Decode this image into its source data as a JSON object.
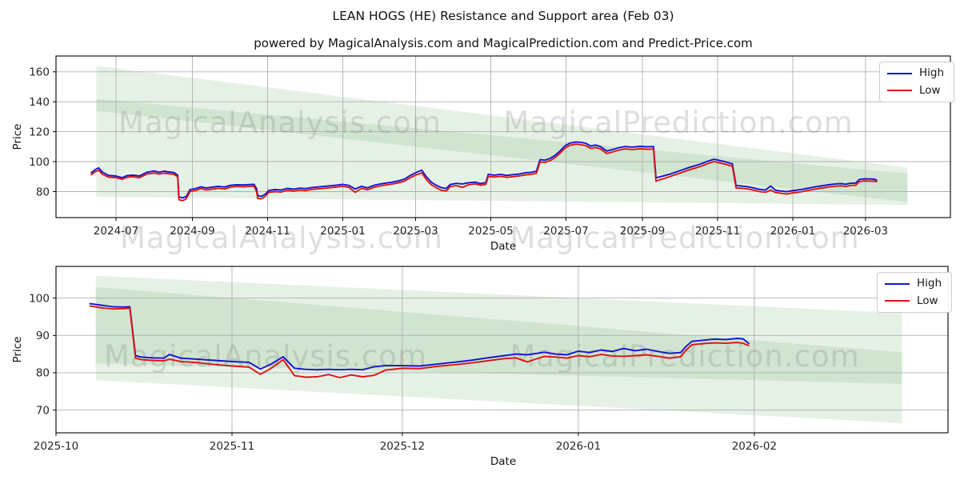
{
  "header": {
    "title": "LEAN HOGS (HE) Resistance and Support area (Feb 03)",
    "subtitle": "powered by MagicalAnalysis.com and MagicalPrediction.com and Predict-Price.com"
  },
  "legend": {
    "high_label": "High",
    "low_label": "Low"
  },
  "watermark_texts": [
    "MagicalAnalysis.com",
    "MagicalPrediction.com"
  ],
  "colors": {
    "high_line": "#1414cc",
    "low_line": "#dc1414",
    "band_green": "#3f8f3f",
    "grid": "#b0b0b0",
    "spine": "#000000",
    "tick_text": "#262626",
    "watermark": "#8a8a8a"
  },
  "chart_data": [
    {
      "type": "line",
      "title": "LEAN HOGS (HE) Resistance and Support area (Feb 03)",
      "subtitle": "powered by MagicalAnalysis.com and MagicalPrediction.com and Predict-Price.com",
      "xlabel": "Date",
      "ylabel": "Price",
      "x_tick_labels": [
        "2024-07",
        "2024-09",
        "2024-11",
        "2025-01",
        "2025-03",
        "2025-05",
        "2025-07",
        "2025-09",
        "2025-11",
        "2026-01",
        "2026-03"
      ],
      "y_ticks": [
        80,
        100,
        120,
        140,
        160
      ],
      "ylim": [
        62.6,
        170.6
      ],
      "grid": true,
      "legend": [
        "High",
        "Low"
      ],
      "legend_position": "upper right",
      "bands": [
        {
          "start": [
            "2024-06-15",
            164,
            76.5
          ],
          "end": [
            "2026-04-04",
            96,
            71
          ]
        },
        {
          "start": [
            "2024-06-15",
            142,
            134
          ],
          "end": [
            "2026-04-04",
            92,
            73
          ]
        }
      ],
      "points": [
        [
          "2024-06-11",
          92.6,
          91.2
        ],
        [
          "2024-06-14",
          94.6,
          93.2
        ],
        [
          "2024-06-17",
          95.8,
          94.2
        ],
        [
          "2024-06-20",
          93.0,
          91.6
        ],
        [
          "2024-06-25",
          90.8,
          89.6
        ],
        [
          "2024-07-01",
          90.4,
          89.3
        ],
        [
          "2024-07-06",
          89.3,
          88.2
        ],
        [
          "2024-07-10",
          90.7,
          89.6
        ],
        [
          "2024-07-15",
          91.0,
          89.9
        ],
        [
          "2024-07-20",
          90.4,
          89.2
        ],
        [
          "2024-07-26",
          92.9,
          91.7
        ],
        [
          "2024-08-01",
          93.7,
          92.4
        ],
        [
          "2024-08-05",
          92.9,
          91.7
        ],
        [
          "2024-08-09",
          93.6,
          92.3
        ],
        [
          "2024-08-13",
          93.1,
          91.9
        ],
        [
          "2024-08-17",
          92.7,
          91.5
        ],
        [
          "2024-08-20",
          91.0,
          89.8
        ],
        [
          "2024-08-21",
          76.4,
          74.6
        ],
        [
          "2024-08-24",
          75.8,
          73.9
        ],
        [
          "2024-08-27",
          76.6,
          75.1
        ],
        [
          "2024-08-30",
          81.3,
          80.1
        ],
        [
          "2024-09-04",
          82.1,
          80.9
        ],
        [
          "2024-09-08",
          83.2,
          82.0
        ],
        [
          "2024-09-12",
          82.4,
          81.1
        ],
        [
          "2024-09-17",
          82.9,
          81.6
        ],
        [
          "2024-09-22",
          83.5,
          82.2
        ],
        [
          "2024-09-27",
          83.0,
          81.7
        ],
        [
          "2024-10-02",
          84.2,
          83.0
        ],
        [
          "2024-10-07",
          84.6,
          83.4
        ],
        [
          "2024-10-12",
          84.4,
          83.2
        ],
        [
          "2024-10-17",
          84.7,
          83.5
        ],
        [
          "2024-10-21",
          84.8,
          83.6
        ],
        [
          "2024-10-23",
          82.0,
          80.0
        ],
        [
          "2024-10-24",
          77.2,
          75.4
        ],
        [
          "2024-10-27",
          76.8,
          75.1
        ],
        [
          "2024-10-30",
          78.2,
          76.8
        ],
        [
          "2024-11-02",
          80.7,
          79.5
        ],
        [
          "2024-11-07",
          81.3,
          80.0
        ],
        [
          "2024-11-12",
          81.0,
          79.7
        ],
        [
          "2024-11-17",
          82.1,
          80.8
        ],
        [
          "2024-11-22",
          81.6,
          80.3
        ],
        [
          "2024-11-27",
          82.3,
          81.0
        ],
        [
          "2024-12-02",
          82.0,
          80.7
        ],
        [
          "2024-12-07",
          82.7,
          81.4
        ],
        [
          "2024-12-12",
          83.1,
          81.8
        ],
        [
          "2024-12-17",
          83.5,
          82.2
        ],
        [
          "2024-12-22",
          83.9,
          82.6
        ],
        [
          "2024-12-27",
          84.3,
          83.0
        ],
        [
          "2025-01-01",
          84.8,
          83.5
        ],
        [
          "2025-01-06",
          84.1,
          82.8
        ],
        [
          "2025-01-11",
          81.7,
          79.5
        ],
        [
          "2025-01-16",
          83.5,
          82.1
        ],
        [
          "2025-01-21",
          82.5,
          81.2
        ],
        [
          "2025-01-26",
          84.1,
          82.8
        ],
        [
          "2025-01-31",
          85.0,
          83.7
        ],
        [
          "2025-02-05",
          85.7,
          84.4
        ],
        [
          "2025-02-10",
          86.3,
          85.0
        ],
        [
          "2025-02-15",
          87.1,
          85.8
        ],
        [
          "2025-02-20",
          88.3,
          87.0
        ],
        [
          "2025-02-25",
          90.9,
          89.4
        ],
        [
          "2025-03-02",
          92.9,
          91.3
        ],
        [
          "2025-03-06",
          94.3,
          92.5
        ],
        [
          "2025-03-10",
          89.6,
          87.8
        ],
        [
          "2025-03-14",
          86.1,
          84.4
        ],
        [
          "2025-03-18",
          84.1,
          82.5
        ],
        [
          "2025-03-22",
          82.6,
          80.8
        ],
        [
          "2025-03-26",
          82.0,
          80.4
        ],
        [
          "2025-03-29",
          84.7,
          83.3
        ],
        [
          "2025-04-03",
          85.5,
          84.0
        ],
        [
          "2025-04-08",
          85.1,
          82.8
        ],
        [
          "2025-04-13",
          85.9,
          84.6
        ],
        [
          "2025-04-18",
          86.3,
          85.1
        ],
        [
          "2025-04-23",
          85.4,
          84.2
        ],
        [
          "2025-04-27",
          86.0,
          84.8
        ],
        [
          "2025-04-29",
          91.5,
          90.1
        ],
        [
          "2025-05-04",
          91.0,
          89.7
        ],
        [
          "2025-05-09",
          91.5,
          90.2
        ],
        [
          "2025-05-14",
          90.8,
          89.5
        ],
        [
          "2025-05-19",
          91.3,
          90.0
        ],
        [
          "2025-05-24",
          91.7,
          90.4
        ],
        [
          "2025-05-29",
          92.5,
          91.1
        ],
        [
          "2025-06-03",
          92.9,
          91.6
        ],
        [
          "2025-06-07",
          93.6,
          92.2
        ],
        [
          "2025-06-10",
          101.3,
          99.7
        ],
        [
          "2025-06-14",
          101.0,
          99.5
        ],
        [
          "2025-06-18",
          102.1,
          100.6
        ],
        [
          "2025-06-22",
          104.1,
          102.6
        ],
        [
          "2025-06-26",
          107.0,
          105.5
        ],
        [
          "2025-06-30",
          110.4,
          108.9
        ],
        [
          "2025-07-04",
          112.4,
          110.9
        ],
        [
          "2025-07-09",
          113.2,
          111.7
        ],
        [
          "2025-07-13",
          112.9,
          111.3
        ],
        [
          "2025-07-17",
          112.3,
          110.7
        ],
        [
          "2025-07-21",
          110.4,
          108.8
        ],
        [
          "2025-07-25",
          111.1,
          109.5
        ],
        [
          "2025-07-29",
          110.1,
          108.5
        ],
        [
          "2025-08-03",
          107.1,
          105.4
        ],
        [
          "2025-08-08",
          108.1,
          106.5
        ],
        [
          "2025-08-13",
          109.4,
          107.8
        ],
        [
          "2025-08-18",
          110.1,
          108.5
        ],
        [
          "2025-08-24",
          109.7,
          108.1
        ],
        [
          "2025-08-30",
          110.2,
          108.6
        ],
        [
          "2025-09-05",
          109.9,
          108.3
        ],
        [
          "2025-09-10",
          110.1,
          108.4
        ],
        [
          "2025-09-12",
          89.2,
          86.9
        ],
        [
          "2025-09-15",
          89.8,
          87.9
        ],
        [
          "2025-09-19",
          90.6,
          88.8
        ],
        [
          "2025-09-24",
          91.8,
          90.2
        ],
        [
          "2025-09-29",
          93.3,
          91.7
        ],
        [
          "2025-10-04",
          94.7,
          93.1
        ],
        [
          "2025-10-09",
          96.1,
          94.5
        ],
        [
          "2025-10-14",
          97.3,
          95.7
        ],
        [
          "2025-10-19",
          98.7,
          97.1
        ],
        [
          "2025-10-24",
          100.3,
          98.7
        ],
        [
          "2025-10-29",
          101.6,
          100.0
        ],
        [
          "2025-11-03",
          100.7,
          99.1
        ],
        [
          "2025-11-08",
          99.7,
          98.1
        ],
        [
          "2025-11-13",
          98.5,
          96.9
        ],
        [
          "2025-11-16",
          84.1,
          82.4
        ],
        [
          "2025-11-20",
          83.7,
          82.2
        ],
        [
          "2025-11-25",
          83.3,
          81.8
        ],
        [
          "2025-11-30",
          82.5,
          81.0
        ],
        [
          "2025-12-05",
          81.5,
          80.0
        ],
        [
          "2025-12-10",
          81.1,
          79.6
        ],
        [
          "2025-12-14",
          83.7,
          81.0
        ],
        [
          "2025-12-18",
          80.9,
          79.4
        ],
        [
          "2025-12-23",
          80.3,
          78.8
        ],
        [
          "2025-12-27",
          79.9,
          78.3
        ],
        [
          "2025-12-31",
          80.5,
          79.0
        ],
        [
          "2026-01-05",
          81.0,
          79.5
        ],
        [
          "2026-01-10",
          81.7,
          80.2
        ],
        [
          "2026-01-15",
          82.5,
          81.0
        ],
        [
          "2026-01-20",
          83.3,
          81.8
        ],
        [
          "2026-01-25",
          83.9,
          82.4
        ],
        [
          "2026-01-30",
          84.5,
          83.0
        ],
        [
          "2026-02-04",
          85.0,
          83.5
        ],
        [
          "2026-02-09",
          85.4,
          83.9
        ],
        [
          "2026-02-13",
          84.9,
          83.4
        ],
        [
          "2026-02-17",
          85.6,
          84.1
        ],
        [
          "2026-02-21",
          85.7,
          84.2
        ],
        [
          "2026-02-24",
          88.1,
          86.7
        ],
        [
          "2026-02-28",
          88.5,
          87.1
        ],
        [
          "2026-03-04",
          88.4,
          87.0
        ],
        [
          "2026-03-08",
          88.3,
          86.9
        ],
        [
          "2026-03-10",
          87.7,
          86.7
        ]
      ]
    },
    {
      "type": "line",
      "title": "",
      "xlabel": "Date",
      "ylabel": "Price",
      "x_tick_labels": [
        "2025-10",
        "2025-11",
        "2025-12",
        "2026-01",
        "2026-02"
      ],
      "y_ticks": [
        70,
        80,
        90,
        100
      ],
      "ylim": [
        63.9,
        108.5
      ],
      "grid": true,
      "legend": [
        "High",
        "Low"
      ],
      "legend_position": "upper right",
      "bands": [
        {
          "start": [
            "2025-10-08",
            106,
            82.5
          ],
          "end": [
            "2026-02-27",
            96,
            77
          ]
        },
        {
          "start": [
            "2025-10-08",
            103,
            78
          ],
          "end": [
            "2026-02-27",
            85.5,
            66.5
          ]
        }
      ],
      "points": [
        [
          "2025-10-07",
          98.5,
          97.9
        ],
        [
          "2025-10-09",
          98.1,
          97.4
        ],
        [
          "2025-10-11",
          97.7,
          97.1
        ],
        [
          "2025-10-13",
          97.6,
          97.2
        ],
        [
          "2025-10-14",
          97.7,
          97.3
        ],
        [
          "2025-10-15",
          84.6,
          83.9
        ],
        [
          "2025-10-16",
          84.2,
          83.5
        ],
        [
          "2025-10-18",
          84.0,
          83.3
        ],
        [
          "2025-10-20",
          83.9,
          83.2
        ],
        [
          "2025-10-21",
          84.9,
          83.6
        ],
        [
          "2025-10-23",
          83.9,
          83.0
        ],
        [
          "2025-10-26",
          83.6,
          82.7
        ],
        [
          "2025-10-29",
          83.3,
          82.2
        ],
        [
          "2025-11-01",
          83.0,
          81.8
        ],
        [
          "2025-11-04",
          82.8,
          81.5
        ],
        [
          "2025-11-06",
          81.0,
          79.6
        ],
        [
          "2025-11-08",
          82.4,
          81.3
        ],
        [
          "2025-11-10",
          84.3,
          83.5
        ],
        [
          "2025-11-12",
          81.2,
          79.2
        ],
        [
          "2025-11-14",
          80.9,
          78.8
        ],
        [
          "2025-11-16",
          80.8,
          78.9
        ],
        [
          "2025-11-18",
          80.9,
          79.5
        ],
        [
          "2025-11-20",
          80.8,
          78.7
        ],
        [
          "2025-11-22",
          80.9,
          79.4
        ],
        [
          "2025-11-24",
          80.8,
          78.9
        ],
        [
          "2025-11-26",
          81.6,
          79.3
        ],
        [
          "2025-11-28",
          81.9,
          80.7
        ],
        [
          "2025-12-01",
          81.9,
          81.2
        ],
        [
          "2025-12-04",
          81.8,
          81.1
        ],
        [
          "2025-12-07",
          82.3,
          81.7
        ],
        [
          "2025-12-10",
          82.8,
          82.1
        ],
        [
          "2025-12-13",
          83.3,
          82.6
        ],
        [
          "2025-12-16",
          84.0,
          83.2
        ],
        [
          "2025-12-19",
          84.6,
          83.8
        ],
        [
          "2025-12-21",
          85.0,
          84.0
        ],
        [
          "2025-12-23",
          84.8,
          82.9
        ],
        [
          "2025-12-26",
          85.5,
          84.4
        ],
        [
          "2025-12-28",
          85.0,
          84.2
        ],
        [
          "2025-12-30",
          84.8,
          83.9
        ],
        [
          "2026-01-01",
          85.8,
          84.6
        ],
        [
          "2026-01-03",
          85.4,
          84.3
        ],
        [
          "2026-01-05",
          86.1,
          84.9
        ],
        [
          "2026-01-07",
          85.7,
          84.5
        ],
        [
          "2026-01-09",
          86.5,
          84.4
        ],
        [
          "2026-01-11",
          85.9,
          84.6
        ],
        [
          "2026-01-13",
          86.3,
          84.8
        ],
        [
          "2026-01-15",
          85.7,
          84.4
        ],
        [
          "2026-01-17",
          85.2,
          83.9
        ],
        [
          "2026-01-19",
          85.4,
          84.3
        ],
        [
          "2026-01-20",
          87.1,
          86.1
        ],
        [
          "2026-01-21",
          88.4,
          87.5
        ],
        [
          "2026-01-23",
          88.7,
          87.8
        ],
        [
          "2026-01-25",
          89.0,
          88.0
        ],
        [
          "2026-01-27",
          88.9,
          87.9
        ],
        [
          "2026-01-29",
          89.2,
          88.1
        ],
        [
          "2026-01-30",
          89.1,
          87.9
        ],
        [
          "2026-01-31",
          87.9,
          87.3
        ]
      ]
    }
  ]
}
